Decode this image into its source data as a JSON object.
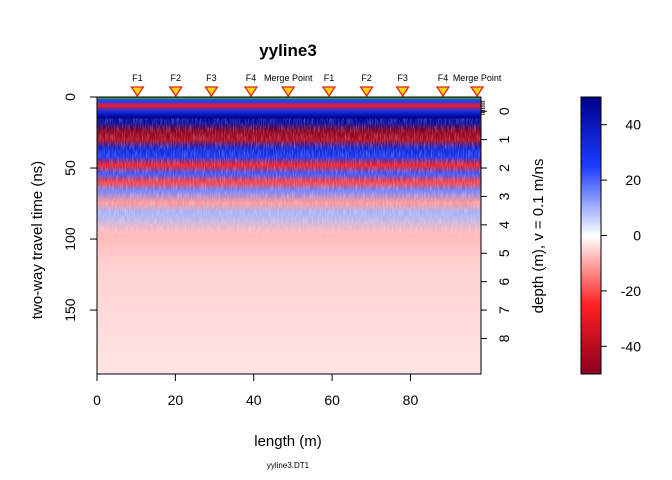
{
  "chart_data": {
    "type": "heatmap",
    "title": "yyline3",
    "subtitle": "yyline3.DT1",
    "xlabel": "length (m)",
    "ylabel": "two-way travel time (ns)",
    "y2label": "depth (m),  v = 0.1 m/ns",
    "xlim": [
      0,
      98
    ],
    "ylim": [
      195,
      0
    ],
    "x_ticks": [
      0,
      20,
      40,
      60,
      80
    ],
    "y_ticks": [
      0,
      50,
      100,
      150
    ],
    "depth_ticks": [
      0,
      1,
      2,
      3,
      4,
      5,
      6,
      7,
      8
    ],
    "velocity_m_per_ns": 0.1,
    "markers": [
      {
        "label": "F1",
        "x": 10.3
      },
      {
        "label": "F2",
        "x": 20.1
      },
      {
        "label": "F3",
        "x": 29.2
      },
      {
        "label": "F4",
        "x": 39.3
      },
      {
        "label": "Merge Point",
        "x": 48.8
      },
      {
        "label": "F1",
        "x": 59.2
      },
      {
        "label": "F2",
        "x": 68.8
      },
      {
        "label": "F3",
        "x": 78.0
      },
      {
        "label": "F4",
        "x": 88.3
      },
      {
        "label": "Merge Point",
        "x": 97.0
      }
    ],
    "colorbar": {
      "range": [
        -50,
        50
      ],
      "ticks": [
        40,
        20,
        0,
        -20,
        -40
      ],
      "colors": {
        "high": "#00008b",
        "mid_high": "#1a3cff",
        "zero": "#ffffff",
        "mid_low": "#ff2020",
        "low": "#8b0020"
      }
    },
    "bands": [
      {
        "t": 0,
        "amp": 20
      },
      {
        "t": 3,
        "amp": 25
      },
      {
        "t": 6,
        "amp": -28
      },
      {
        "t": 10,
        "amp": 30
      },
      {
        "t": 14,
        "amp": 48
      },
      {
        "t": 18,
        "amp": 45
      },
      {
        "t": 24,
        "amp": -50
      },
      {
        "t": 30,
        "amp": -42
      },
      {
        "t": 36,
        "amp": 35
      },
      {
        "t": 42,
        "amp": 28
      },
      {
        "t": 48,
        "amp": -28
      },
      {
        "t": 54,
        "amp": 22
      },
      {
        "t": 60,
        "amp": -22
      },
      {
        "t": 66,
        "amp": 16
      },
      {
        "t": 74,
        "amp": -12
      },
      {
        "t": 82,
        "amp": 10
      },
      {
        "t": 95,
        "amp": -8
      },
      {
        "t": 120,
        "amp": -5
      },
      {
        "t": 195,
        "amp": -3
      }
    ]
  }
}
